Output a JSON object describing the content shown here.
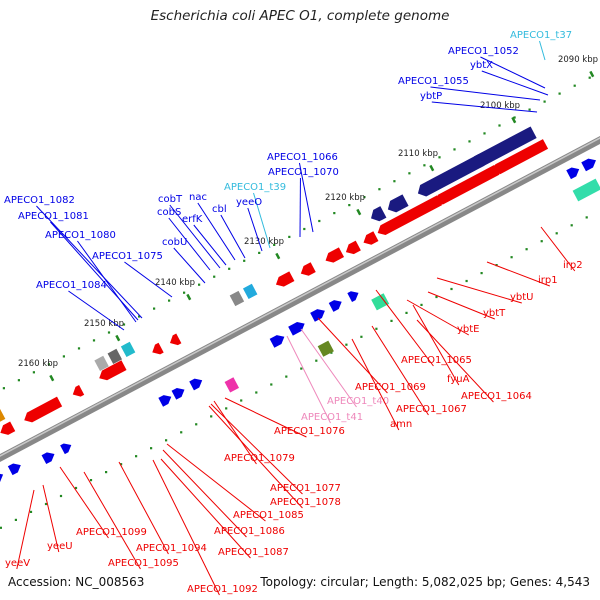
{
  "title": "Escherichia coli APEC O1, complete genome",
  "footer": {
    "accession": "Accession: NC_008563",
    "stats": "Topology: circular; Length: 5,082,025 bp; Genes: 4,543"
  },
  "colors": {
    "forward": "#0000e6",
    "reverse": "#ee0000",
    "trna": "#33bbdd",
    "pseudo": "#ee88bb",
    "backbone": "#888888",
    "tick": "#228822"
  },
  "ticks": [
    {
      "label": "2090 kbp"
    },
    {
      "label": "2100 kbp"
    },
    {
      "label": "2110 kbp"
    },
    {
      "label": "2120 kbp"
    },
    {
      "label": "2130 kbp"
    },
    {
      "label": "2140 kbp"
    },
    {
      "label": "2150 kbp"
    },
    {
      "label": "2160 kbp"
    }
  ],
  "gene_labels": [
    {
      "text": "APECO1_t37",
      "type": "trna"
    },
    {
      "text": "APECO1_1052",
      "type": "forward"
    },
    {
      "text": "ybtX",
      "type": "forward"
    },
    {
      "text": "APECO1_1055",
      "type": "forward"
    },
    {
      "text": "ybtP",
      "type": "forward"
    },
    {
      "text": "APECO1_1066",
      "type": "forward"
    },
    {
      "text": "APECO1_1070",
      "type": "forward"
    },
    {
      "text": "APECO1_t39",
      "type": "trna"
    },
    {
      "text": "yeeO",
      "type": "forward"
    },
    {
      "text": "cobT",
      "type": "forward"
    },
    {
      "text": "nac",
      "type": "forward"
    },
    {
      "text": "cobS",
      "type": "forward"
    },
    {
      "text": "cbl",
      "type": "forward"
    },
    {
      "text": "erfK",
      "type": "forward"
    },
    {
      "text": "cobU",
      "type": "forward"
    },
    {
      "text": "APECO1_1082",
      "type": "forward"
    },
    {
      "text": "APECO1_1081",
      "type": "forward"
    },
    {
      "text": "APECO1_1080",
      "type": "forward"
    },
    {
      "text": "APECO1_1075",
      "type": "forward"
    },
    {
      "text": "APECO1_1084",
      "type": "forward"
    },
    {
      "text": "irp2",
      "type": "reverse"
    },
    {
      "text": "irp1",
      "type": "reverse"
    },
    {
      "text": "ybtU",
      "type": "reverse"
    },
    {
      "text": "ybtT",
      "type": "reverse"
    },
    {
      "text": "ybtE",
      "type": "reverse"
    },
    {
      "text": "APECO1_1065",
      "type": "reverse"
    },
    {
      "text": "fyuA",
      "type": "reverse"
    },
    {
      "text": "APECO1_1064",
      "type": "reverse"
    },
    {
      "text": "APECO1_1069",
      "type": "reverse"
    },
    {
      "text": "APECO1_t40",
      "type": "pseudo"
    },
    {
      "text": "APECO1_1067",
      "type": "reverse"
    },
    {
      "text": "APECO1_t41",
      "type": "pseudo"
    },
    {
      "text": "amn",
      "type": "reverse"
    },
    {
      "text": "APECO1_1076",
      "type": "reverse"
    },
    {
      "text": "APECO1_1079",
      "type": "reverse"
    },
    {
      "text": "APECO1_1077",
      "type": "reverse"
    },
    {
      "text": "APECO1_1078",
      "type": "reverse"
    },
    {
      "text": "APECO1_1085",
      "type": "reverse"
    },
    {
      "text": "APECO1_1086",
      "type": "reverse"
    },
    {
      "text": "APECO1_1087",
      "type": "reverse"
    },
    {
      "text": "APECO1_1094",
      "type": "reverse"
    },
    {
      "text": "APECO1_1095",
      "type": "reverse"
    },
    {
      "text": "APECO1_1092",
      "type": "reverse"
    },
    {
      "text": "APECO1_1099",
      "type": "reverse"
    },
    {
      "text": "yeeU",
      "type": "reverse"
    },
    {
      "text": "yeeV",
      "type": "reverse"
    }
  ]
}
